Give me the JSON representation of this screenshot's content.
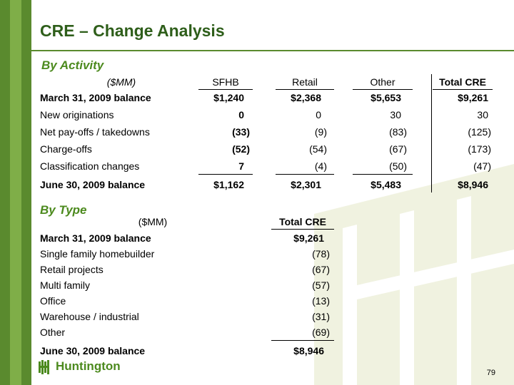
{
  "title": "CRE – Change Analysis",
  "activity": {
    "heading": "By Activity",
    "columns": [
      "($MM)",
      "SFHB",
      "Retail",
      "Other",
      "Total CRE"
    ],
    "rows": [
      {
        "label": "March 31, 2009 balance",
        "bold": true,
        "values": [
          "$1,240",
          "$2,368",
          "$5,653",
          "$9,261"
        ]
      },
      {
        "label": "New originations",
        "bold": false,
        "values": [
          "0",
          "0",
          "30",
          "30"
        ]
      },
      {
        "label": "Net pay-offs / takedowns",
        "bold": false,
        "values": [
          "(33)",
          "(9)",
          "(83)",
          "(125)"
        ]
      },
      {
        "label": "Charge-offs",
        "bold": false,
        "values": [
          "(52)",
          "(54)",
          "(67)",
          "(173)"
        ]
      },
      {
        "label": "Classification changes",
        "bold": false,
        "values": [
          "7",
          "(4)",
          "(50)",
          "(47)"
        ]
      },
      {
        "label": "June 30, 2009 balance",
        "bold": true,
        "values": [
          "$1,162",
          "$2,301",
          "$5,483",
          "$8,946"
        ]
      }
    ]
  },
  "type": {
    "heading": "By Type",
    "columns": [
      "($MM)",
      "Total CRE"
    ],
    "rows": [
      {
        "label": "March 31, 2009 balance",
        "value": "$9,261"
      },
      {
        "label": "Single family homebuilder",
        "value": "(78)"
      },
      {
        "label": "Retail projects",
        "value": "(67)"
      },
      {
        "label": "Multi family",
        "value": "(57)"
      },
      {
        "label": "Office",
        "value": "(13)"
      },
      {
        "label": "Warehouse / industrial",
        "value": "(31)"
      },
      {
        "label": "Other",
        "value": "(69)"
      },
      {
        "label": "June 30, 2009 balance",
        "value": "$8,946"
      }
    ]
  },
  "footer": {
    "logo_text": "Huntington",
    "page_number": "79"
  },
  "colors": {
    "brand_green": "#4c8a1e",
    "dark_green": "#2e5e1a",
    "bar_green": "#5a8a2e"
  }
}
